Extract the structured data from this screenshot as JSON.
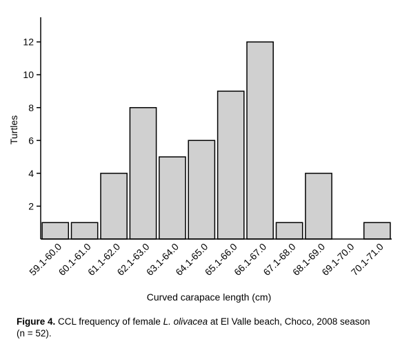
{
  "chart_data": {
    "type": "bar",
    "categories": [
      "59.1-60.0",
      "60.1-61.0",
      "61.1-62.0",
      "62.1-63.0",
      "63.1-64.0",
      "64.1-65.0",
      "65.1-66.0",
      "66.1-67.0",
      "67.1-68.0",
      "68.1-69.0",
      "69.1-70.0",
      "70.1-71.0"
    ],
    "values": [
      1,
      1,
      4,
      8,
      5,
      6,
      9,
      12,
      1,
      4,
      0,
      1
    ],
    "title": "",
    "xlabel": "Curved carapace length (cm)",
    "ylabel": "Turtles",
    "ylim": [
      0,
      13.5
    ],
    "yticks": [
      2,
      4,
      6,
      8,
      10,
      12
    ],
    "grid": false,
    "bar_color": "#d0d0d0",
    "bar_edge_color": "#000000"
  },
  "caption": {
    "label": "Figure 4.",
    "text_before": " CCL frequency of female ",
    "species": "L. olivacea",
    "text_after": " at El Valle beach, Choco, 2008 season (n = 52)."
  }
}
